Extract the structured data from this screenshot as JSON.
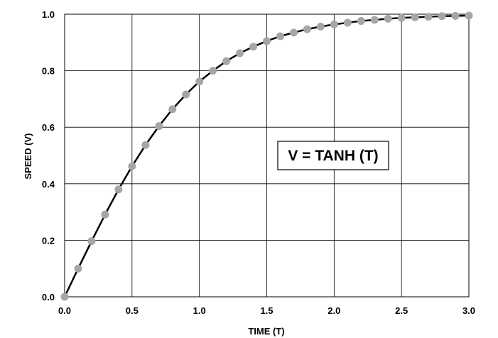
{
  "chart_data": {
    "type": "line",
    "xlabel": "TIME (T)",
    "ylabel": "SPEED (V)",
    "xlim": [
      0,
      3.0
    ],
    "ylim": [
      0,
      1.0
    ],
    "xticks": [
      "0.0",
      "0.5",
      "1.0",
      "1.5",
      "2.0",
      "2.5",
      "3.0"
    ],
    "yticks": [
      "0.0",
      "0.2",
      "0.4",
      "0.6",
      "0.8",
      "1.0"
    ],
    "grid": true,
    "annotation": "V = TANH (T)",
    "series": [
      {
        "line_color": "#000000",
        "marker_color": "#a6a6a6",
        "x": [
          0.0,
          0.1,
          0.2,
          0.3,
          0.4,
          0.5,
          0.6,
          0.7,
          0.8,
          0.9,
          1.0,
          1.1,
          1.2,
          1.3,
          1.4,
          1.5,
          1.6,
          1.7,
          1.8,
          1.9,
          2.0,
          2.1,
          2.2,
          2.3,
          2.4,
          2.5,
          2.6,
          2.7,
          2.8,
          2.9,
          3.0
        ],
        "y": [
          0.0,
          0.1,
          0.197,
          0.291,
          0.38,
          0.462,
          0.537,
          0.604,
          0.664,
          0.716,
          0.762,
          0.8,
          0.834,
          0.862,
          0.885,
          0.905,
          0.922,
          0.935,
          0.947,
          0.956,
          0.964,
          0.97,
          0.976,
          0.98,
          0.984,
          0.987,
          0.989,
          0.991,
          0.993,
          0.994,
          0.995
        ]
      }
    ]
  }
}
